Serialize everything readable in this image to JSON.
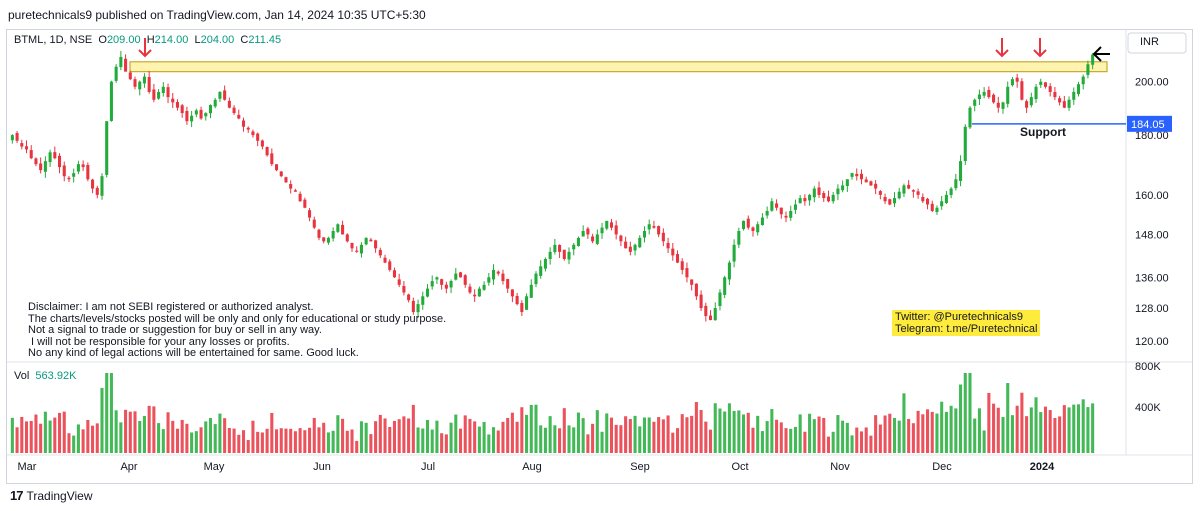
{
  "header": {
    "publisher": "puretechnicals9 published on TradingView.com, Jan 14, 2024 10:35 UTC+5:30"
  },
  "legend": {
    "symbol": "BTML, 1D, NSE",
    "o_label": "O",
    "o": "209.00",
    "h_label": "H",
    "h": "214.00",
    "l_label": "L",
    "l": "204.00",
    "c_label": "C",
    "c": "211.45"
  },
  "volume": {
    "label": "Vol",
    "value": "563.92K"
  },
  "currency": "INR",
  "price_tag": "184.05",
  "support_label": "Support",
  "disclaimer": "Disclaimer: I am not SEBI registered or authorized analyst.\nThe charts/levels/stocks posted will be only and only for educational or study purpose.\nNot a signal to trade or suggestion for buy or sell in any way.\n I will not be responsible for your any losses or profits.\nNo any kind of legal actions will be entertained for same. Good luck.",
  "social": "Twitter: @Puretechnicals9\nTelegram: t.me/Puretechnical",
  "footer": {
    "brand": "TradingView"
  },
  "colors": {
    "up": "#22ab3a",
    "down": "#e8343f",
    "support_line": "#2962ff",
    "zone_fill": "#fff3b0",
    "zone_border": "#c8a830",
    "arrow_red": "#e8343f",
    "arrow_black": "#000000",
    "tag_bg": "#2962ff"
  },
  "chart_data": {
    "type": "candlestick",
    "x_ticks": [
      "Mar",
      "Apr",
      "May",
      "Jun",
      "Jul",
      "Aug",
      "Sep",
      "Oct",
      "Nov",
      "Dec",
      "2024"
    ],
    "y_ticks": [
      120,
      128,
      136,
      148,
      160,
      180,
      200
    ],
    "y_tick_labels": [
      "120.00",
      "128.00",
      "136.00",
      "148.00",
      "160.00",
      "180.00",
      "200.00"
    ],
    "ylim": [
      116,
      215
    ],
    "scale": "log",
    "volume_ticks": [
      "400K",
      "800K"
    ],
    "support_level": 184.05,
    "resistance_zone": [
      204,
      208
    ],
    "closes": [
      180,
      178,
      176,
      175,
      172,
      170,
      168,
      171,
      174,
      172,
      169,
      166,
      165,
      167,
      170,
      169,
      165,
      162,
      160,
      166,
      185,
      200,
      206,
      210,
      204,
      201,
      198,
      200,
      202,
      196,
      193,
      196,
      198,
      194,
      192,
      190,
      188,
      185,
      187,
      189,
      186,
      188,
      191,
      193,
      196,
      193,
      190,
      188,
      186,
      183,
      182,
      180,
      178,
      176,
      173,
      170,
      168,
      166,
      164,
      162,
      161,
      158,
      156,
      153,
      150,
      147,
      146,
      147,
      149,
      151,
      148,
      146,
      144,
      143,
      145,
      147,
      146,
      144,
      142,
      140,
      138,
      136,
      134,
      132,
      130,
      127,
      129,
      131,
      133,
      135,
      136,
      134,
      133,
      135,
      137,
      136,
      134,
      132,
      131,
      133,
      134,
      136,
      138,
      137,
      135,
      133,
      131,
      129,
      127,
      131,
      134,
      137,
      139,
      141,
      143,
      145,
      143,
      141,
      143,
      145,
      147,
      149,
      148,
      146,
      148,
      150,
      152,
      150,
      148,
      146,
      144,
      143,
      145,
      147,
      149,
      151,
      150,
      148,
      146,
      144,
      142,
      140,
      138,
      136,
      134,
      131,
      128,
      126,
      125,
      128,
      132,
      136,
      140,
      145,
      149,
      152,
      150,
      149,
      151,
      153,
      155,
      158,
      156,
      154,
      153,
      155,
      157,
      159,
      158,
      160,
      162,
      160,
      159,
      158,
      160,
      162,
      163,
      165,
      167,
      166,
      165,
      164,
      163,
      162,
      160,
      158,
      157,
      159,
      161,
      163,
      162,
      161,
      160,
      158,
      157,
      155,
      156,
      158,
      160,
      162,
      165,
      171,
      183,
      190,
      193,
      195,
      196,
      194,
      192,
      190,
      192,
      198,
      201,
      200,
      193,
      190,
      194,
      198,
      200,
      198,
      196,
      194,
      192,
      190,
      193,
      196,
      199,
      202,
      207,
      211
    ]
  }
}
